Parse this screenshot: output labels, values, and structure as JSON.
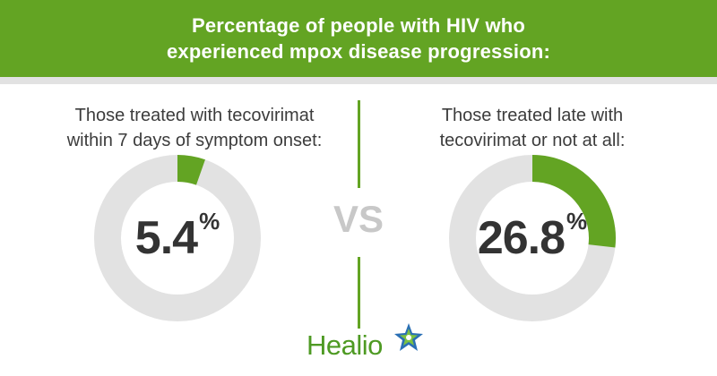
{
  "chart_data": {
    "type": "donut",
    "title_lines": [
      "Percentage of people with HIV who",
      "experienced mpox disease progression:"
    ],
    "comparison_label": "VS",
    "series": [
      {
        "name": "Those treated with tecovirimat within 7 days of symptom onset:",
        "label_lines": [
          "Those treated with tecovirimat",
          "within 7 days of symptom onset:"
        ],
        "value": 5.4,
        "display_value": "5.4",
        "unit": "%"
      },
      {
        "name": "Those treated late with tecovirimat or not at all:",
        "label_lines": [
          "Those treated late with",
          "tecovirimat or not at all:"
        ],
        "value": 26.8,
        "display_value": "26.8",
        "unit": "%"
      }
    ],
    "range": [
      0,
      100
    ]
  },
  "logo": {
    "text": "Healio"
  },
  "colors": {
    "accent": "#63a423",
    "track": "#e2e2e2",
    "text": "#333333",
    "vs": "#c8c8c8",
    "logo_green": "#4e9a23",
    "logo_blue": "#2a6fb5"
  }
}
